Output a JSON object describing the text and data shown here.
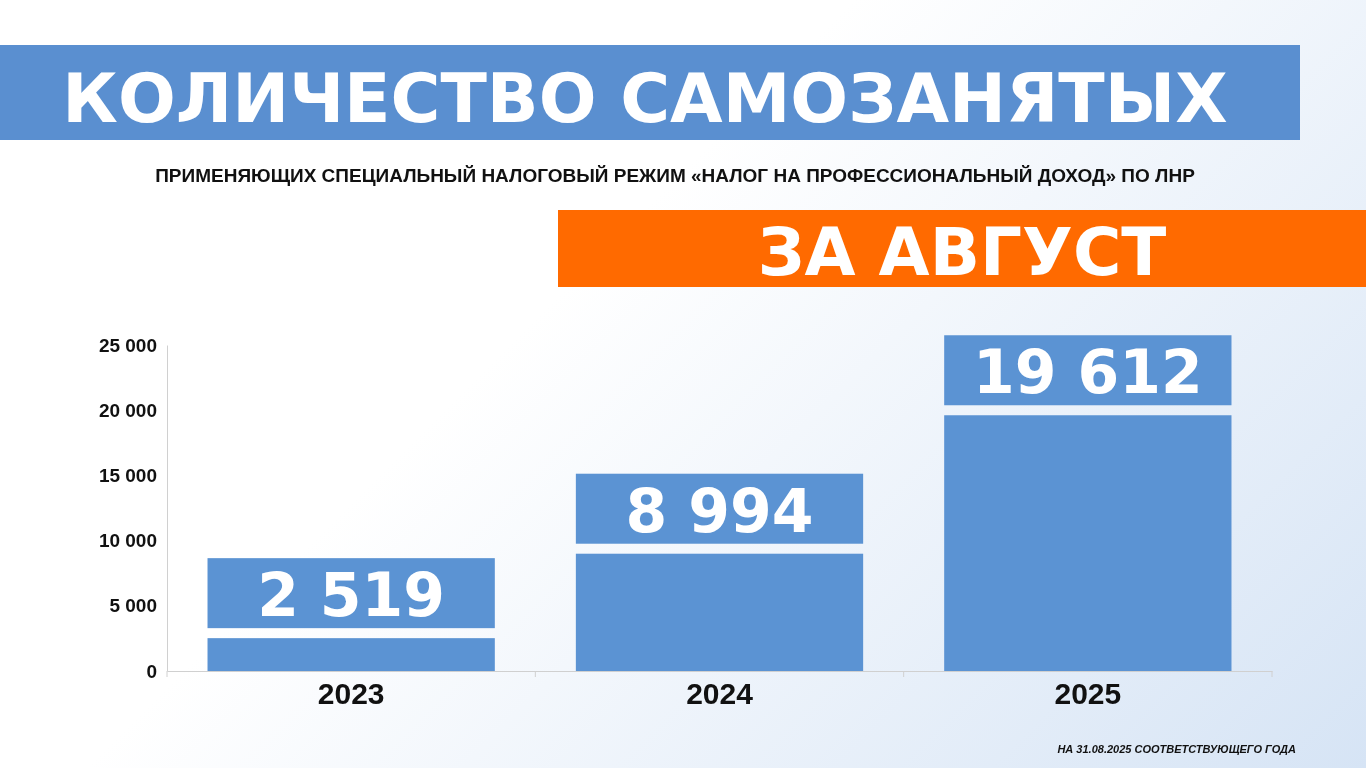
{
  "chart_data": {
    "type": "bar",
    "title": "КОЛИЧЕСТВО САМОЗАНЯТЫХ",
    "subtitle": "ПРИМЕНЯЮЩИХ СПЕЦИАЛЬНЫЙ НАЛОГОВЫЙ РЕЖИМ «НАЛОГ НА ПРОФЕССИОНАЛЬНЫЙ ДОХОД» ПО ЛНР",
    "annotations": [
      "ЗА АВГУСТ",
      "НА 31.08.2025 СООТВЕТСТВУЮЩЕГО ГОДА"
    ],
    "categories": [
      "2023",
      "2024",
      "2025"
    ],
    "values": [
      2519,
      8994,
      19612
    ],
    "color": "#5b93d3",
    "value_labels": [
      "2 519",
      "8 994",
      "19 612"
    ],
    "ylim": [
      0,
      25000
    ],
    "yticks": [
      0,
      {
        "value": 5000,
        "label": "5 000"
      },
      {
        "value": 10000,
        "label": "10 000"
      },
      {
        "value": 15000,
        "label": "15 000"
      },
      {
        "value": 20000,
        "label": "20 000"
      },
      {
        "value": 25000,
        "label": "25 000"
      }
    ],
    "grid": false
  }
}
